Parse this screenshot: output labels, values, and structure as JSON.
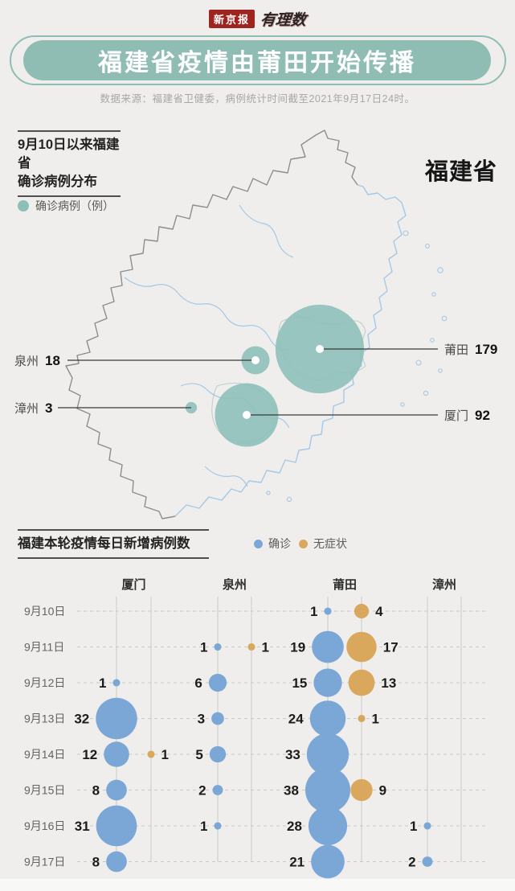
{
  "header": {
    "logo_text": "新京报",
    "logo_brand": "有理数",
    "title": "福建省疫情由莆田开始传播",
    "source": "数据来源：福建省卫健委，病例统计时间截至2021年9月17日24时。"
  },
  "colors": {
    "banner_teal": "#8fbdb4",
    "map_bubble": "#8cbfb8",
    "confirmed_blue": "#7ba7d7",
    "asymptomatic_orange": "#d9a85c"
  },
  "chart_data": [
    {
      "type": "bubble-map",
      "title": "9月10日以来福建省确诊病例分布",
      "title_lines": [
        "9月10日以来福建省",
        "确诊病例分布"
      ],
      "region_label": "福建省",
      "legend": [
        {
          "label": "确诊病例（例）",
          "color": "#8cbfb8"
        }
      ],
      "points": [
        {
          "name": "莆田",
          "value": 179
        },
        {
          "name": "厦门",
          "value": 92
        },
        {
          "name": "泉州",
          "value": 18
        },
        {
          "name": "漳州",
          "value": 3
        }
      ]
    },
    {
      "type": "bubble-grid",
      "title": "福建本轮疫情每日新增病例数",
      "legend": [
        {
          "label": "确诊",
          "color": "#7ba7d7"
        },
        {
          "label": "无症状",
          "color": "#d9a85c"
        }
      ],
      "categories": [
        "厦门",
        "泉州",
        "莆田",
        "漳州"
      ],
      "rows": [
        "9月10日",
        "9月11日",
        "9月12日",
        "9月13日",
        "9月14日",
        "9月15日",
        "9月16日",
        "9月17日"
      ],
      "series": [
        {
          "name": "厦门",
          "confirmed": [
            null,
            null,
            1,
            32,
            12,
            8,
            31,
            8
          ],
          "asymptomatic": [
            null,
            null,
            null,
            null,
            1,
            null,
            null,
            null
          ]
        },
        {
          "name": "泉州",
          "confirmed": [
            null,
            1,
            6,
            3,
            5,
            2,
            1,
            null
          ],
          "asymptomatic": [
            null,
            1,
            null,
            null,
            null,
            null,
            null,
            null
          ]
        },
        {
          "name": "莆田",
          "confirmed": [
            1,
            19,
            15,
            24,
            33,
            38,
            28,
            21
          ],
          "asymptomatic": [
            4,
            17,
            13,
            1,
            null,
            9,
            null,
            null
          ]
        },
        {
          "name": "漳州",
          "confirmed": [
            null,
            null,
            null,
            null,
            null,
            null,
            1,
            2
          ],
          "asymptomatic": [
            null,
            null,
            null,
            null,
            null,
            null,
            null,
            null
          ]
        }
      ]
    }
  ]
}
